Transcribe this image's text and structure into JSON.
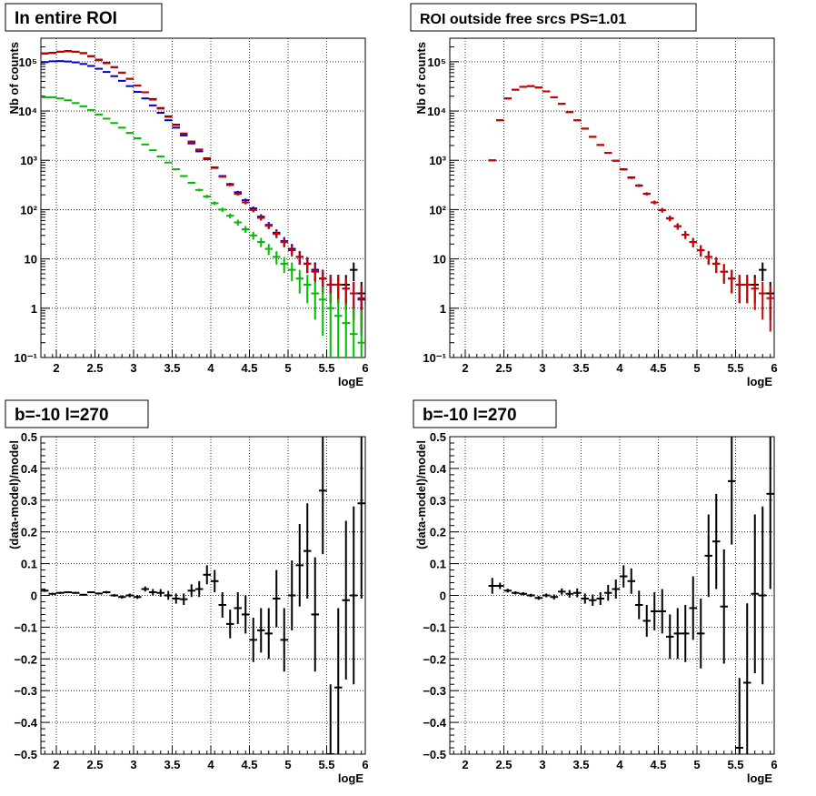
{
  "chart_data": [
    {
      "type": "scatter",
      "title": "In entire ROI",
      "xlabel": "logE",
      "ylabel": "Nb of counts",
      "xlim": [
        1.8,
        6.0
      ],
      "ylim": [
        0.1,
        300000
      ],
      "log_y": true,
      "grid": true,
      "x_ticks": [
        "2",
        "2.5",
        "3",
        "3.5",
        "4",
        "4.5",
        "5",
        "5.5",
        "6"
      ],
      "y_ticks": [
        "10⁻¹",
        "1",
        "10",
        "10²",
        "10³",
        "10⁴",
        "10⁵"
      ],
      "series": [
        {
          "color": "#000000",
          "x": [
            1.85,
            1.95,
            2.05,
            2.15,
            2.25,
            2.35,
            2.45,
            2.55,
            2.65,
            2.75,
            2.85,
            2.95,
            3.05,
            3.15,
            3.25,
            3.35,
            3.45,
            3.55,
            3.65,
            3.75,
            3.85,
            3.95,
            4.05,
            4.15,
            4.25,
            4.35,
            4.45,
            4.55,
            4.65,
            4.75,
            4.85,
            4.95,
            5.05,
            5.15,
            5.25,
            5.35,
            5.45,
            5.55,
            5.65,
            5.75,
            5.85,
            5.95
          ],
          "y": [
            148000,
            152000,
            160000,
            165000,
            160000,
            150000,
            130000,
            110000,
            95000,
            78000,
            60000,
            45000,
            33000,
            24000,
            17500,
            11500,
            7800,
            5300,
            3500,
            2400,
            1650,
            1100,
            720,
            470,
            320,
            210,
            140,
            100,
            70,
            48,
            33,
            22,
            16,
            11,
            8,
            6,
            4,
            3,
            3,
            3,
            6,
            2
          ]
        },
        {
          "color": "#0000cc",
          "x": [
            1.85,
            1.95,
            2.05,
            2.15,
            2.25,
            2.35,
            2.45,
            2.55,
            2.65,
            2.75,
            2.85,
            2.95,
            3.05,
            3.15,
            3.25,
            3.35,
            3.45,
            3.55,
            3.65,
            3.75,
            3.85,
            3.95,
            4.05,
            4.15,
            4.25,
            4.35,
            4.45,
            4.55,
            4.65,
            4.75,
            4.85,
            4.95,
            5.05,
            5.15,
            5.25,
            5.35,
            5.45,
            5.55,
            5.65,
            5.75,
            5.85,
            5.95
          ],
          "y": [
            98000,
            102000,
            103000,
            101000,
            97000,
            90000,
            82000,
            72000,
            62000,
            51000,
            41000,
            32000,
            24500,
            18000,
            13000,
            9200,
            6500,
            4600,
            3200,
            2200,
            1520,
            1050,
            700,
            480,
            330,
            225,
            155,
            106,
            72,
            49,
            34,
            23,
            16,
            11,
            8,
            6,
            4,
            3,
            3,
            2.5,
            2,
            1.5
          ]
        },
        {
          "color": "#cc0000",
          "x": [
            1.85,
            1.95,
            2.05,
            2.15,
            2.25,
            2.35,
            2.45,
            2.55,
            2.65,
            2.75,
            2.85,
            2.95,
            3.05,
            3.15,
            3.25,
            3.35,
            3.45,
            3.55,
            3.65,
            3.75,
            3.85,
            3.95,
            4.05,
            4.15,
            4.25,
            4.35,
            4.45,
            4.55,
            4.65,
            4.75,
            4.85,
            4.95,
            5.05,
            5.15,
            5.25,
            5.35,
            5.45,
            5.55,
            5.65,
            5.75,
            5.85,
            5.95
          ],
          "y": [
            145000,
            150000,
            158000,
            162000,
            158000,
            148000,
            128000,
            108000,
            93000,
            77000,
            60000,
            45000,
            33000,
            24000,
            17000,
            11200,
            7600,
            5200,
            3450,
            2350,
            1620,
            1080,
            710,
            465,
            315,
            208,
            140,
            98,
            68,
            47,
            32,
            22,
            15,
            11,
            8,
            5.5,
            4,
            3,
            3,
            2.5,
            2,
            1.6
          ]
        },
        {
          "color": "#00bb00",
          "x": [
            1.85,
            1.95,
            2.05,
            2.15,
            2.25,
            2.35,
            2.45,
            2.55,
            2.65,
            2.75,
            2.85,
            2.95,
            3.05,
            3.15,
            3.25,
            3.35,
            3.45,
            3.55,
            3.65,
            3.75,
            3.85,
            3.95,
            4.05,
            4.15,
            4.25,
            4.35,
            4.45,
            4.55,
            4.65,
            4.75,
            4.85,
            4.95,
            5.05,
            5.15,
            5.25,
            5.35,
            5.45,
            5.55,
            5.65,
            5.75,
            5.85,
            5.95
          ],
          "y": [
            19000,
            19000,
            18000,
            16500,
            14500,
            12500,
            10500,
            8500,
            7000,
            5700,
            4600,
            3600,
            2800,
            2100,
            1600,
            1200,
            900,
            660,
            480,
            350,
            250,
            185,
            135,
            100,
            75,
            55,
            40,
            30,
            22,
            16,
            11,
            8,
            6,
            4,
            3,
            2,
            1.5,
            1,
            0.7,
            0.5,
            0.3,
            0.2
          ]
        }
      ]
    },
    {
      "type": "scatter",
      "title": "ROI outside free srcs PS=1.01",
      "xlabel": "logE",
      "ylabel": "Nb of counts",
      "xlim": [
        1.8,
        6.0
      ],
      "ylim": [
        0.1,
        300000
      ],
      "log_y": true,
      "grid": true,
      "x_ticks": [
        "2",
        "2.5",
        "3",
        "3.5",
        "4",
        "4.5",
        "5",
        "5.5",
        "6"
      ],
      "y_ticks": [
        "10⁻¹",
        "1",
        "10",
        "10²",
        "10³",
        "10⁴",
        "10⁵"
      ],
      "series": [
        {
          "color": "#000000",
          "x": [
            2.35,
            2.45,
            2.55,
            2.65,
            2.75,
            2.85,
            2.95,
            3.05,
            3.15,
            3.25,
            3.35,
            3.45,
            3.55,
            3.65,
            3.75,
            3.85,
            3.95,
            4.05,
            4.15,
            4.25,
            4.35,
            4.45,
            4.55,
            4.65,
            4.75,
            4.85,
            4.95,
            5.05,
            5.15,
            5.25,
            5.35,
            5.45,
            5.55,
            5.65,
            5.75,
            5.85,
            5.95
          ],
          "y": [
            1000,
            6500,
            18000,
            27000,
            31000,
            32000,
            30000,
            25000,
            19000,
            14000,
            9500,
            6500,
            4400,
            3000,
            2050,
            1420,
            980,
            660,
            450,
            310,
            210,
            140,
            98,
            67,
            46,
            31,
            22,
            15,
            11,
            8,
            5.5,
            4,
            3,
            3,
            3,
            6,
            2
          ]
        },
        {
          "color": "#cc0000",
          "x": [
            2.35,
            2.45,
            2.55,
            2.65,
            2.75,
            2.85,
            2.95,
            3.05,
            3.15,
            3.25,
            3.35,
            3.45,
            3.55,
            3.65,
            3.75,
            3.85,
            3.95,
            4.05,
            4.15,
            4.25,
            4.35,
            4.45,
            4.55,
            4.65,
            4.75,
            4.85,
            4.95,
            5.05,
            5.15,
            5.25,
            5.35,
            5.45,
            5.55,
            5.65,
            5.75,
            5.85,
            5.95
          ],
          "y": [
            1000,
            6500,
            18000,
            27000,
            31000,
            32000,
            30000,
            25000,
            19000,
            14000,
            9500,
            6500,
            4400,
            3000,
            2050,
            1420,
            980,
            650,
            440,
            305,
            208,
            140,
            97,
            66,
            46,
            31,
            22,
            15,
            11,
            8,
            5.5,
            4,
            3,
            3,
            2.5,
            2,
            1.6
          ]
        }
      ]
    },
    {
      "type": "scatter",
      "title": "b=-10 l=270",
      "xlabel": "logE",
      "ylabel": "(data-model)/model",
      "xlim": [
        1.8,
        6.0
      ],
      "ylim": [
        -0.5,
        0.5
      ],
      "grid": true,
      "x_ticks": [
        "2",
        "2.5",
        "3",
        "3.5",
        "4",
        "4.5",
        "5",
        "5.5",
        "6"
      ],
      "y_ticks": [
        "−0.5",
        "−0.4",
        "−0.3",
        "−0.2",
        "−0.1",
        "0",
        "0.1",
        "0.2",
        "0.3",
        "0.4",
        "0.5"
      ],
      "series": [
        {
          "color": "#000000",
          "x": [
            1.85,
            1.95,
            2.05,
            2.15,
            2.25,
            2.35,
            2.45,
            2.55,
            2.65,
            2.75,
            2.85,
            2.95,
            3.05,
            3.15,
            3.25,
            3.35,
            3.45,
            3.55,
            3.65,
            3.75,
            3.85,
            3.95,
            4.05,
            4.15,
            4.25,
            4.35,
            4.45,
            4.55,
            4.65,
            4.75,
            4.85,
            4.95,
            5.05,
            5.15,
            5.25,
            5.35,
            5.45,
            5.55,
            5.65,
            5.75,
            5.85,
            5.95
          ],
          "y": [
            0.015,
            0.005,
            0.008,
            0.01,
            0.008,
            0.002,
            0.01,
            0.006,
            0.01,
            0.0,
            -0.005,
            0.0,
            -0.005,
            0.02,
            0.01,
            0.008,
            0.0,
            -0.01,
            -0.012,
            0.015,
            0.02,
            0.065,
            0.045,
            -0.03,
            -0.09,
            -0.04,
            -0.06,
            -0.14,
            -0.11,
            -0.12,
            -0.01,
            -0.14,
            0.0,
            0.095,
            0.14,
            -0.06,
            0.33,
            -0.5,
            -0.29,
            -0.015,
            0.0,
            0.29
          ],
          "err": [
            0.004,
            0.003,
            0.003,
            0.003,
            0.003,
            0.003,
            0.003,
            0.003,
            0.004,
            0.004,
            0.005,
            0.006,
            0.006,
            0.008,
            0.01,
            0.012,
            0.014,
            0.016,
            0.018,
            0.02,
            0.025,
            0.03,
            0.035,
            0.04,
            0.045,
            0.05,
            0.06,
            0.07,
            0.07,
            0.08,
            0.09,
            0.1,
            0.11,
            0.13,
            0.15,
            0.18,
            0.2,
            0.22,
            0.25,
            0.25,
            0.28,
            0.3
          ]
        }
      ]
    },
    {
      "type": "scatter",
      "title": "b=-10 l=270",
      "xlabel": "logE",
      "ylabel": "(data-model)/model",
      "xlim": [
        1.8,
        6.0
      ],
      "ylim": [
        -0.5,
        0.5
      ],
      "grid": true,
      "x_ticks": [
        "2",
        "2.5",
        "3",
        "3.5",
        "4",
        "4.5",
        "5",
        "5.5",
        "6"
      ],
      "y_ticks": [
        "−0.5",
        "−0.4",
        "−0.3",
        "−0.2",
        "−0.1",
        "0",
        "0.1",
        "0.2",
        "0.3",
        "0.4",
        "0.5"
      ],
      "series": [
        {
          "color": "#000000",
          "x": [
            2.35,
            2.45,
            2.55,
            2.65,
            2.75,
            2.85,
            2.95,
            3.05,
            3.15,
            3.25,
            3.35,
            3.45,
            3.55,
            3.65,
            3.75,
            3.85,
            3.95,
            4.05,
            4.15,
            4.25,
            4.35,
            4.45,
            4.55,
            4.65,
            4.75,
            4.85,
            4.95,
            5.05,
            5.15,
            5.25,
            5.35,
            5.45,
            5.55,
            5.65,
            5.75,
            5.85,
            5.95
          ],
          "y": [
            0.03,
            0.03,
            0.015,
            0.008,
            0.005,
            0.0,
            -0.008,
            0.0,
            -0.005,
            0.012,
            0.005,
            0.008,
            -0.01,
            -0.015,
            -0.01,
            0.008,
            0.02,
            0.06,
            0.045,
            -0.03,
            -0.08,
            -0.05,
            -0.05,
            -0.13,
            -0.12,
            -0.12,
            -0.04,
            -0.12,
            0.125,
            0.17,
            -0.035,
            0.36,
            -0.48,
            -0.275,
            0.005,
            0.0,
            0.32
          ],
          "err": [
            0.025,
            0.01,
            0.006,
            0.005,
            0.005,
            0.005,
            0.006,
            0.006,
            0.008,
            0.01,
            0.012,
            0.014,
            0.016,
            0.018,
            0.02,
            0.025,
            0.03,
            0.035,
            0.04,
            0.045,
            0.05,
            0.06,
            0.07,
            0.07,
            0.08,
            0.09,
            0.1,
            0.11,
            0.13,
            0.15,
            0.18,
            0.2,
            0.22,
            0.25,
            0.25,
            0.28,
            0.3
          ]
        }
      ]
    }
  ]
}
